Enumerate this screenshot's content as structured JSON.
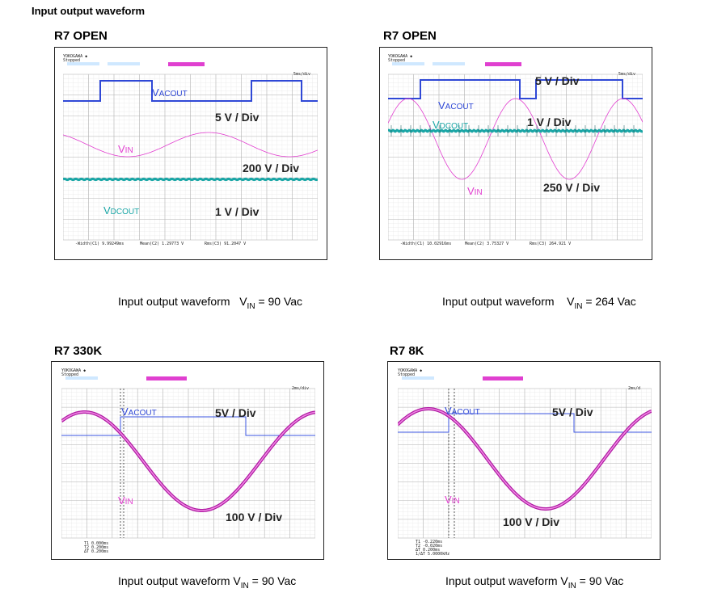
{
  "page_title": "Input output waveform",
  "panels": [
    {
      "title": "R7 OPEN",
      "caption_prefix": "Input output waveform",
      "caption_vin": "V",
      "caption_vin_sub": "IN",
      "caption_value": "= 90 Vac",
      "scales": [
        "5 V / Div",
        "200 V / Div",
        "1 V / Div"
      ],
      "signals": {
        "vacout": "V",
        "vacout_sub": "ACOUT",
        "vin": "V",
        "vin_sub": "IN",
        "vdcout": "V",
        "vdcout_sub": "DCOUT"
      },
      "scope": {
        "brand": "YOKOGAWA ◆",
        "state": "Stopped",
        "timebase": "5ms/div",
        "meas": [
          "-Width(C1) 9.99249ms",
          "Mean(C2) 1.29773 V",
          "Rms(C3) 91.2047 V"
        ]
      }
    },
    {
      "title": "R7 OPEN",
      "caption_prefix": "Input output waveform",
      "caption_vin": "V",
      "caption_vin_sub": "IN",
      "caption_value": "= 264 Vac",
      "scales": [
        "5 V / Div",
        "1 V / Div",
        "250 V / Div"
      ],
      "signals": {
        "vacout": "V",
        "vacout_sub": "ACOUT",
        "vin": "V",
        "vin_sub": "IN",
        "vdcout": "V",
        "vdcout_sub": "DCOUT"
      },
      "scope": {
        "brand": "YOKOGAWA ◆",
        "state": "Stopped",
        "timebase": "5ms/div",
        "meas": [
          "-Width(C1) 10.02916ms",
          "Mean(C2) 3.75327 V",
          "Rms(C3) 264.921 V"
        ]
      }
    },
    {
      "title": "R7 330K",
      "caption_prefix": "Input output waveform",
      "caption_vin": "V",
      "caption_vin_sub": "IN",
      "caption_value": "= 90 Vac",
      "scales": [
        "5V / Div",
        "100 V / Div"
      ],
      "signals": {
        "vacout": "V",
        "vacout_sub": "ACOUT",
        "vin": "V",
        "vin_sub": "IN"
      },
      "scope": {
        "brand": "YOKOGAWA ◆",
        "state": "Stopped",
        "timebase": "2ms/div",
        "meas": [
          "T1 0.000ms",
          "T2 0.200ms",
          "ΔT 0.200ms"
        ]
      }
    },
    {
      "title": "R7 8K",
      "caption_prefix": "Input output waveform",
      "caption_vin": "V",
      "caption_vin_sub": "IN",
      "caption_value": "= 90 Vac",
      "scales": [
        "5V / Div",
        "100 V / Div"
      ],
      "signals": {
        "vacout": "V",
        "vacout_sub": "ACOUT",
        "vin": "V",
        "vin_sub": "IN"
      },
      "scope": {
        "brand": "YOKOGAWA ◆",
        "state": "Stopped",
        "timebase": "2ms/d",
        "meas": [
          "T1 -0.220ms",
          "T2 -0.020ms",
          "ΔT 0.200ms",
          "1/ΔT 5.0000kHz"
        ]
      }
    }
  ],
  "colors": {
    "vacout": "#2f48d6",
    "vin": "#e23fd0",
    "vdcout": "#1aa6a6",
    "grid": "#c8c8c8",
    "frame": "#222222",
    "vin_thick": "#b01aa3"
  }
}
